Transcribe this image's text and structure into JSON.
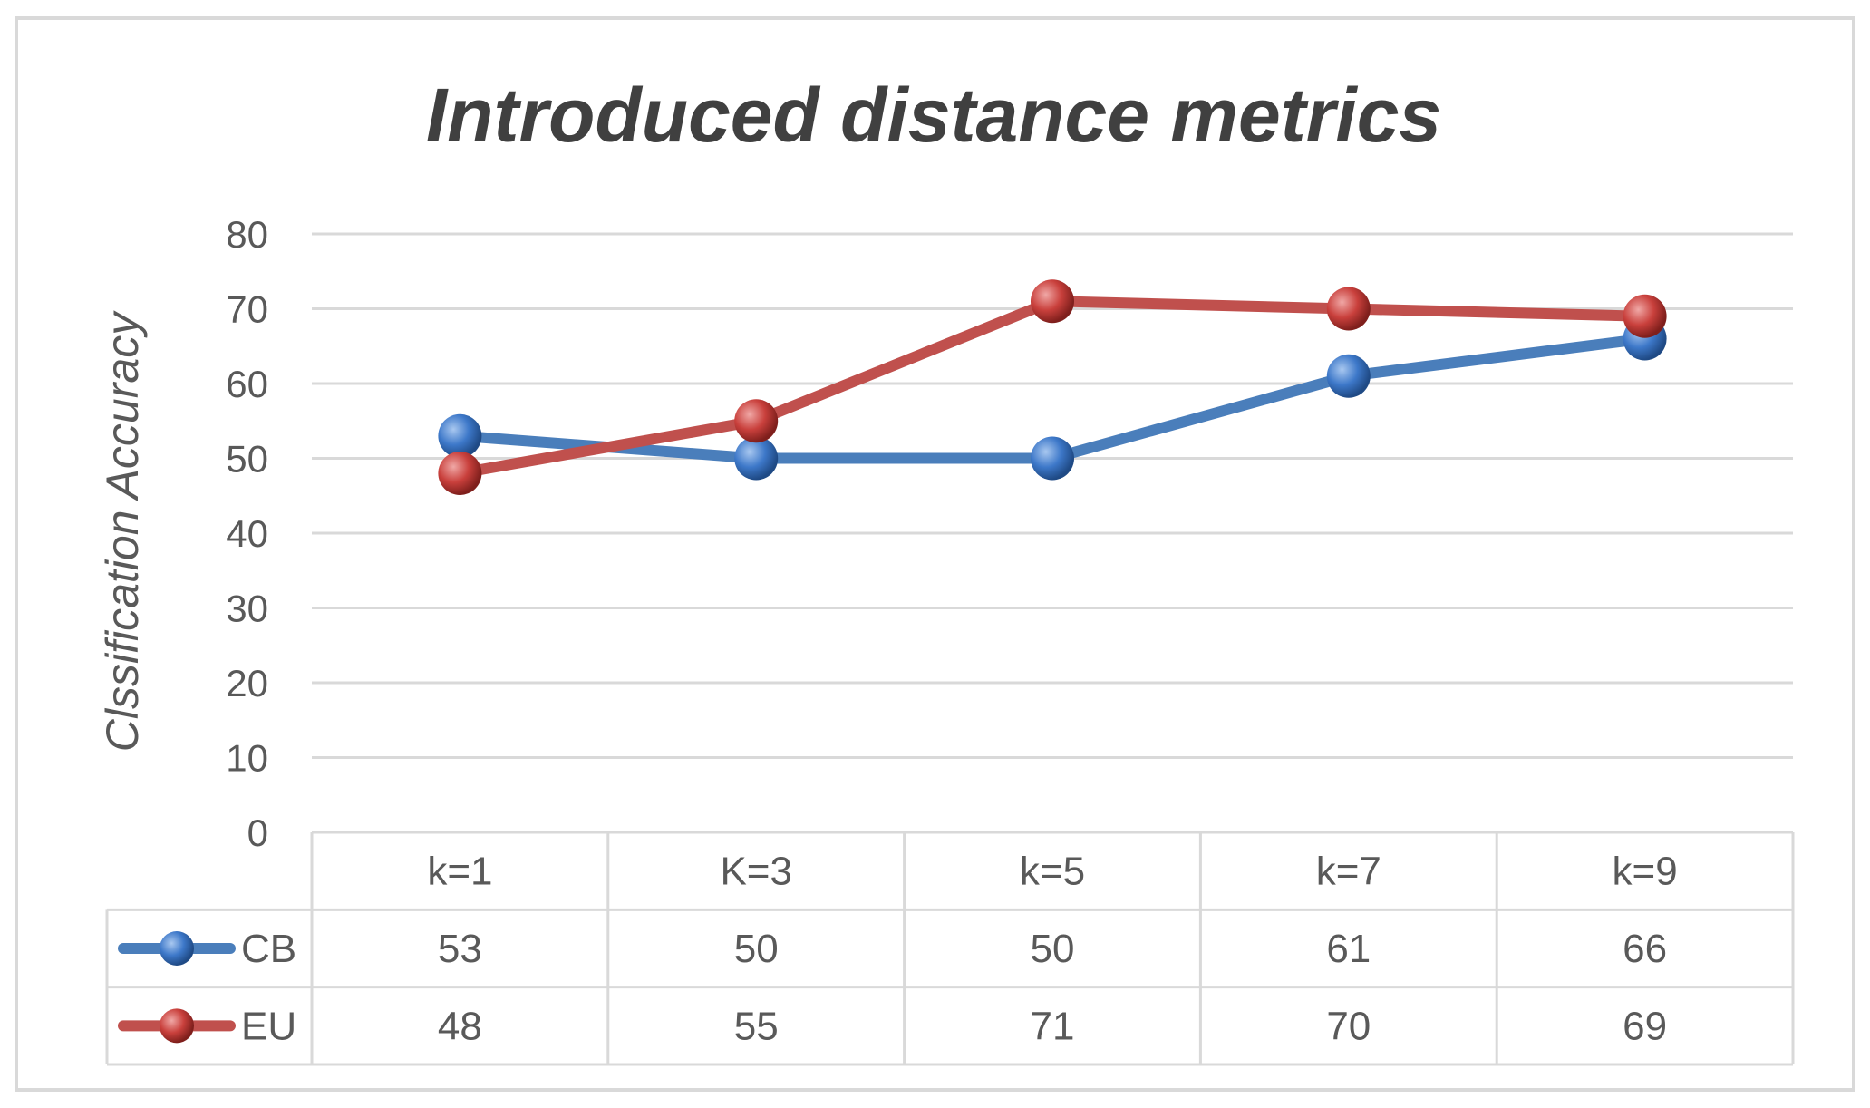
{
  "chart_data": {
    "type": "line",
    "title": "Introduced distance metrics",
    "xlabel": "",
    "ylabel": "Clssification Accuracy",
    "ylim": [
      0,
      80
    ],
    "yticks": [
      "0",
      "10",
      "20",
      "30",
      "40",
      "50",
      "60",
      "70",
      "80"
    ],
    "categories": [
      "k=1",
      "K=3",
      "k=5",
      "k=7",
      "k=9"
    ],
    "series": [
      {
        "name": "CB",
        "values": [
          53,
          50,
          50,
          61,
          66
        ],
        "color": "#4a7ebb"
      },
      {
        "name": "EU",
        "values": [
          48,
          55,
          71,
          70,
          69
        ],
        "color": "#c0504d"
      }
    ],
    "grid": true,
    "legend": "data-table"
  }
}
